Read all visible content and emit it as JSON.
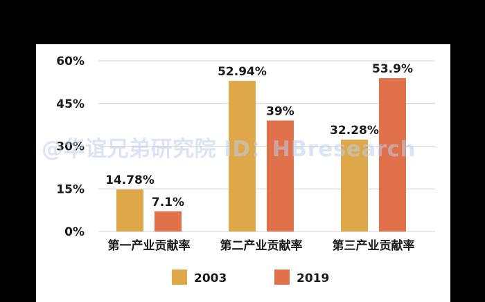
{
  "colors": {
    "background": "#000000",
    "panel": "#ffffff",
    "gridline": "#d0d0d0",
    "series_2003": "#DEA84A",
    "series_2019": "#E1714A",
    "watermark": "#bccce8"
  },
  "watermark": "@华谊兄弟研究院 ID：HBresearch",
  "chart_data": {
    "type": "bar",
    "title": "",
    "xlabel": "",
    "ylabel": "",
    "categories": [
      "第一产业贡献率",
      "第二产业贡献率",
      "第三产业贡献率"
    ],
    "series": [
      {
        "name": "2003",
        "values": [
          14.78,
          52.94,
          32.28
        ],
        "labels": [
          "14.78%",
          "52.94%",
          "32.28%"
        ],
        "color": "#DEA84A"
      },
      {
        "name": "2019",
        "values": [
          7.1,
          39,
          53.9
        ],
        "labels": [
          "7.1%",
          "39%",
          "53.9%"
        ],
        "color": "#E1714A"
      }
    ],
    "ylim": [
      0,
      60
    ],
    "yticks": [
      0,
      15,
      30,
      45,
      60
    ],
    "ytick_labels": [
      "0%",
      "15%",
      "30%",
      "45%",
      "60%"
    ],
    "grid": true,
    "legend_position": "bottom"
  }
}
